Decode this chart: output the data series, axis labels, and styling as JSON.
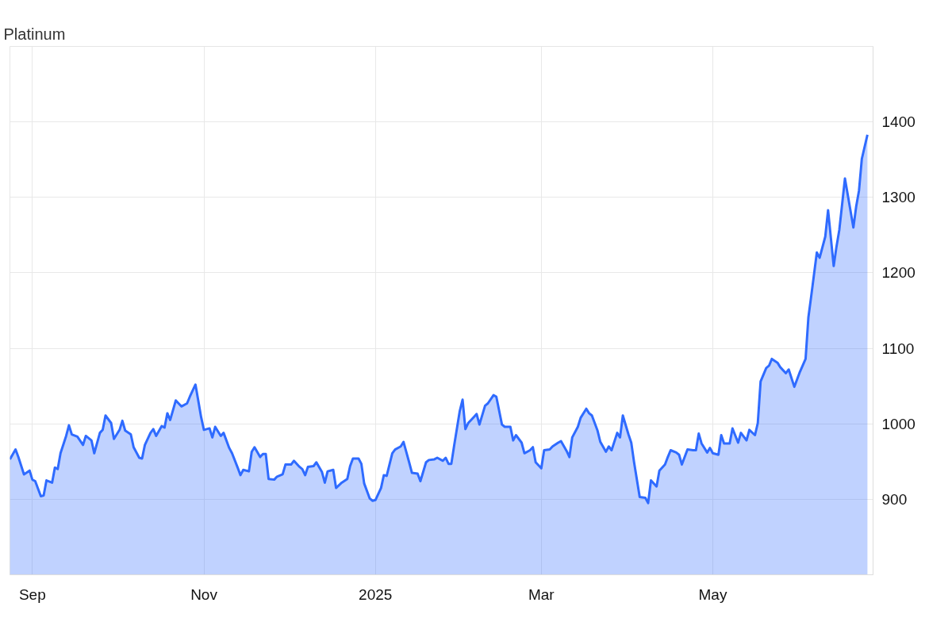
{
  "chart_data": {
    "type": "area",
    "title": "Platinum",
    "x": [
      "2024-08-24",
      "2024-08-26",
      "2024-08-27",
      "2024-08-29",
      "2024-08-31",
      "2024-09-01",
      "2024-09-02",
      "2024-09-04",
      "2024-09-05",
      "2024-09-06",
      "2024-09-08",
      "2024-09-09",
      "2024-09-10",
      "2024-09-11",
      "2024-09-13",
      "2024-09-14",
      "2024-09-15",
      "2024-09-17",
      "2024-09-19",
      "2024-09-20",
      "2024-09-22",
      "2024-09-23",
      "2024-09-25",
      "2024-09-26",
      "2024-09-27",
      "2024-09-29",
      "2024-09-30",
      "2024-10-02",
      "2024-10-03",
      "2024-10-04",
      "2024-10-06",
      "2024-10-07",
      "2024-10-09",
      "2024-10-10",
      "2024-10-11",
      "2024-10-13",
      "2024-10-14",
      "2024-10-15",
      "2024-10-17",
      "2024-10-18",
      "2024-10-19",
      "2024-10-20",
      "2024-10-22",
      "2024-10-24",
      "2024-10-26",
      "2024-10-27",
      "2024-10-29",
      "2024-10-31",
      "2024-11-01",
      "2024-11-03",
      "2024-11-04",
      "2024-11-05",
      "2024-11-07",
      "2024-11-08",
      "2024-11-10",
      "2024-11-11",
      "2024-11-13",
      "2024-11-14",
      "2024-11-15",
      "2024-11-17",
      "2024-11-18",
      "2024-11-19",
      "2024-11-21",
      "2024-11-22",
      "2024-11-23",
      "2024-11-24",
      "2024-11-26",
      "2024-11-27",
      "2024-11-29",
      "2024-11-30",
      "2024-12-02",
      "2024-12-03",
      "2024-12-05",
      "2024-12-06",
      "2024-12-07",
      "2024-12-08",
      "2024-12-10",
      "2024-12-11",
      "2024-12-13",
      "2024-12-14",
      "2024-12-15",
      "2024-12-17",
      "2024-12-18",
      "2024-12-20",
      "2024-12-22",
      "2024-12-23",
      "2024-12-24",
      "2024-12-26",
      "2024-12-27",
      "2024-12-28",
      "2024-12-30",
      "2024-12-31",
      "2025-01-01",
      "2025-01-03",
      "2025-01-04",
      "2025-01-05",
      "2025-01-07",
      "2025-01-08",
      "2025-01-10",
      "2025-01-11",
      "2025-01-13",
      "2025-01-14",
      "2025-01-16",
      "2025-01-17",
      "2025-01-19",
      "2025-01-20",
      "2025-01-22",
      "2025-01-23",
      "2025-01-25",
      "2025-01-26",
      "2025-01-27",
      "2025-01-28",
      "2025-01-29",
      "2025-01-31",
      "2025-02-01",
      "2025-02-02",
      "2025-02-03",
      "2025-02-05",
      "2025-02-06",
      "2025-02-07",
      "2025-02-09",
      "2025-02-10",
      "2025-02-12",
      "2025-02-13",
      "2025-02-15",
      "2025-02-16",
      "2025-02-18",
      "2025-02-19",
      "2025-02-20",
      "2025-02-22",
      "2025-02-23",
      "2025-02-25",
      "2025-02-26",
      "2025-02-27",
      "2025-03-01",
      "2025-03-02",
      "2025-03-04",
      "2025-03-05",
      "2025-03-07",
      "2025-03-08",
      "2025-03-10",
      "2025-03-11",
      "2025-03-12",
      "2025-03-14",
      "2025-03-15",
      "2025-03-17",
      "2025-03-18",
      "2025-03-19",
      "2025-03-21",
      "2025-03-22",
      "2025-03-24",
      "2025-03-25",
      "2025-03-26",
      "2025-03-28",
      "2025-03-29",
      "2025-03-30",
      "2025-04-01",
      "2025-04-02",
      "2025-04-03",
      "2025-04-05",
      "2025-04-07",
      "2025-04-08",
      "2025-04-09",
      "2025-04-11",
      "2025-04-12",
      "2025-04-14",
      "2025-04-15",
      "2025-04-16",
      "2025-04-18",
      "2025-04-19",
      "2025-04-20",
      "2025-04-22",
      "2025-04-24",
      "2025-04-25",
      "2025-04-26",
      "2025-04-27",
      "2025-04-29",
      "2025-04-30",
      "2025-05-01",
      "2025-05-03",
      "2025-05-04",
      "2025-05-05",
      "2025-05-07",
      "2025-05-08",
      "2025-05-10",
      "2025-05-11",
      "2025-05-13",
      "2025-05-14",
      "2025-05-16",
      "2025-05-17",
      "2025-05-18",
      "2025-05-20",
      "2025-05-21",
      "2025-05-22",
      "2025-05-24",
      "2025-05-25",
      "2025-05-27",
      "2025-05-28",
      "2025-05-30",
      "2025-05-31",
      "2025-06-01",
      "2025-06-03",
      "2025-06-04",
      "2025-06-05",
      "2025-06-07",
      "2025-06-08",
      "2025-06-10",
      "2025-06-11",
      "2025-06-13",
      "2025-06-14",
      "2025-06-15",
      "2025-06-17",
      "2025-06-20",
      "2025-06-21",
      "2025-06-22",
      "2025-06-23",
      "2025-06-25"
    ],
    "series": [
      {
        "color": "#2f6bff",
        "values": [
          953,
          966,
          956,
          933,
          938,
          926,
          924,
          904,
          905,
          925,
          922,
          942,
          940,
          961,
          984,
          998,
          986,
          983,
          972,
          984,
          978,
          961,
          988,
          992,
          1011,
          1001,
          980,
          992,
          1004,
          991,
          986,
          969,
          955,
          954,
          972,
          988,
          993,
          984,
          997,
          995,
          1014,
          1005,
          1031,
          1023,
          1027,
          1036,
          1052,
          1009,
          992,
          994,
          982,
          996,
          984,
          988,
          968,
          961,
          942,
          932,
          939,
          937,
          963,
          969,
          956,
          960,
          960,
          927,
          926,
          930,
          933,
          946,
          946,
          951,
          943,
          940,
          932,
          943,
          944,
          949,
          936,
          922,
          937,
          939,
          915,
          922,
          927,
          944,
          954,
          954,
          947,
          921,
          901,
          898,
          899,
          915,
          932,
          931,
          961,
          966,
          970,
          976,
          949,
          935,
          934,
          924,
          949,
          952,
          953,
          955,
          951,
          955,
          947,
          947,
          971,
          1017,
          1032,
          993,
          1001,
          1009,
          1013,
          999,
          1024,
          1027,
          1038,
          1036,
          999,
          996,
          996,
          978,
          985,
          975,
          961,
          965,
          969,
          949,
          941,
          965,
          966,
          970,
          975,
          977,
          964,
          956,
          982,
          996,
          1008,
          1020,
          1014,
          1011,
          991,
          976,
          963,
          970,
          965,
          988,
          982,
          1011,
          986,
          975,
          949,
          903,
          902,
          895,
          925,
          917,
          938,
          946,
          956,
          965,
          962,
          959,
          946,
          966,
          965,
          965,
          987,
          974,
          962,
          968,
          961,
          959,
          985,
          974,
          974,
          994,
          975,
          988,
          978,
          992,
          985,
          1001,
          1056,
          1074,
          1077,
          1086,
          1081,
          1075,
          1067,
          1072,
          1049,
          1059,
          1069,
          1086,
          1141,
          1169,
          1227,
          1220,
          1248,
          1283,
          1209,
          1235,
          1257,
          1325,
          1260,
          1288,
          1309,
          1351,
          1383
        ]
      }
    ],
    "xlim": [
      "2024-08-24",
      "2025-06-27"
    ],
    "xticks": [
      {
        "value": "2024-09-01",
        "label": "Sep"
      },
      {
        "value": "2024-11-01",
        "label": "Nov"
      },
      {
        "value": "2025-01-01",
        "label": "2025"
      },
      {
        "value": "2025-03-01",
        "label": "Mar"
      },
      {
        "value": "2025-05-01",
        "label": "May"
      }
    ],
    "ylim": [
      800,
      1500
    ],
    "yticks": [
      900,
      1000,
      1100,
      1200,
      1300,
      1400
    ],
    "grid": true
  }
}
